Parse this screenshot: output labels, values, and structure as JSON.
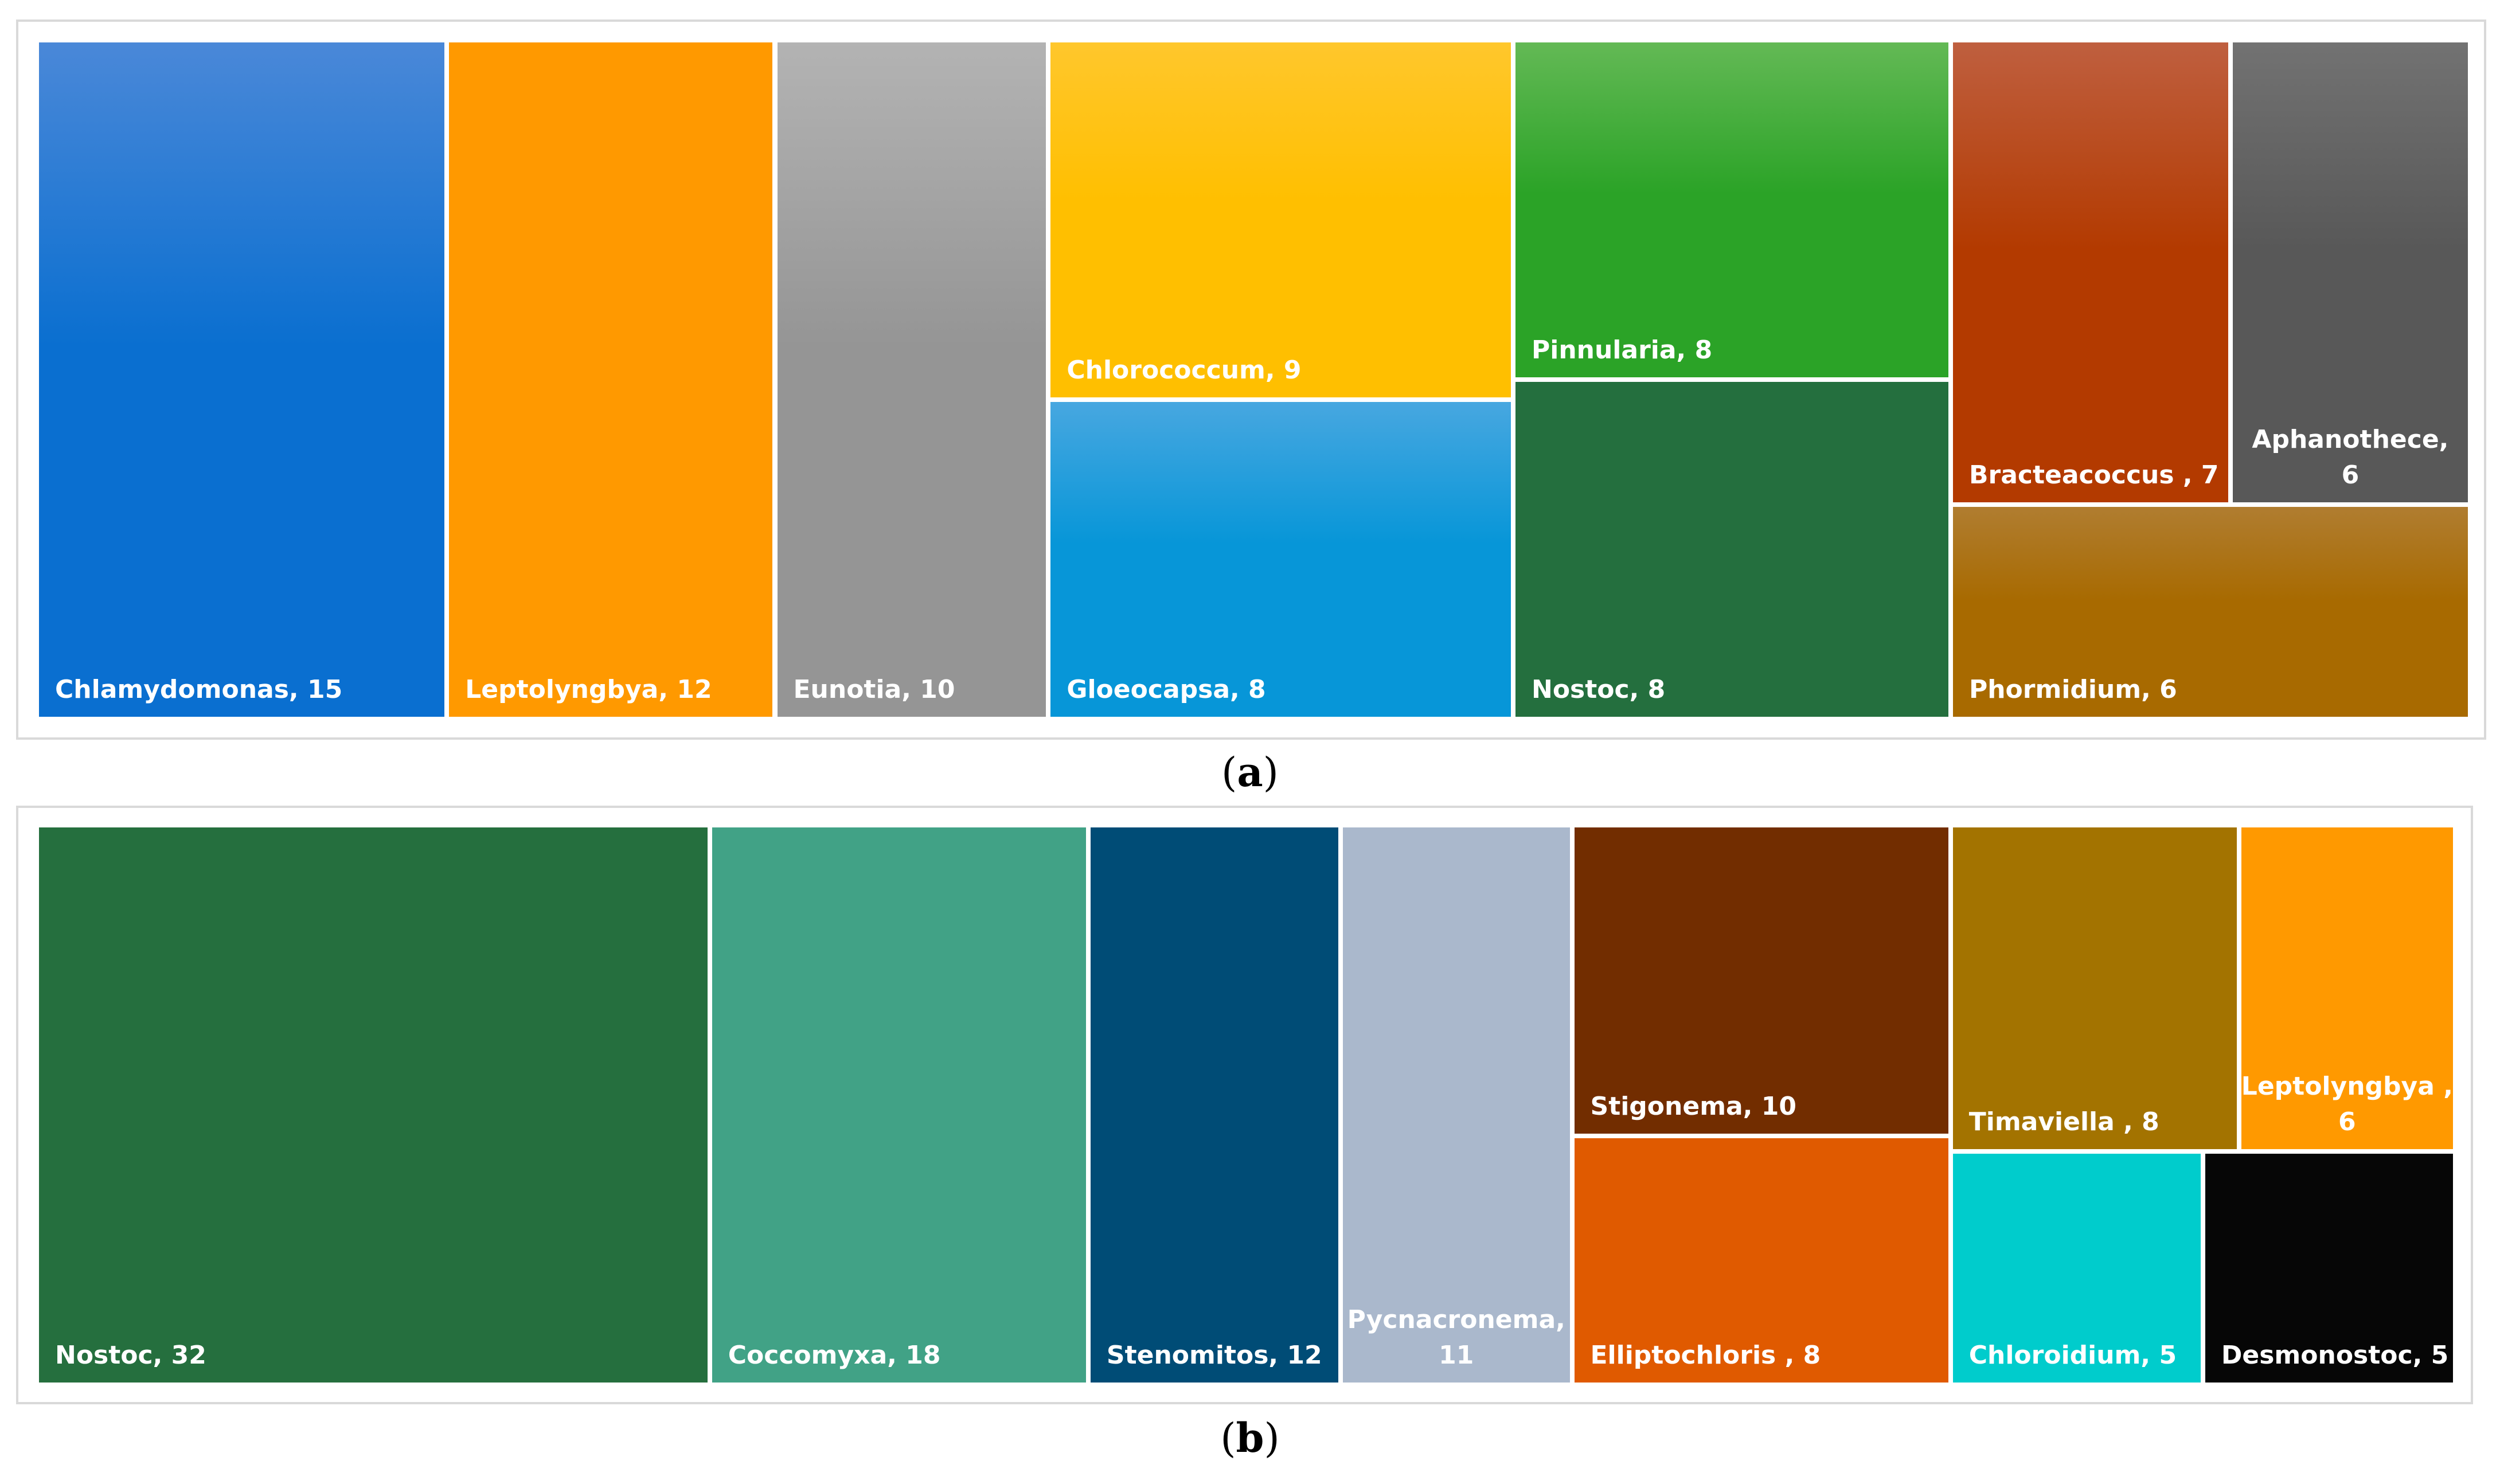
{
  "captions": {
    "a_open": "(",
    "a_letter": "a",
    "a_close": ")",
    "b_open": "(",
    "b_letter": "b",
    "b_close": ")"
  },
  "chart_data": [
    {
      "type": "treemap",
      "panel": "a",
      "items": [
        {
          "label": "Chlamydomonas, 15",
          "name": "Chlamydomonas",
          "value": 15,
          "color": "#0a6fd0",
          "color_top": "#4a88d8"
        },
        {
          "label": "Leptolyngbya, 12",
          "name": "Leptolyngbya",
          "value": 12,
          "color": "#ff9900",
          "color_top": "#ff9900"
        },
        {
          "label": "Eunotia, 10",
          "name": "Eunotia",
          "value": 10,
          "color": "#959595",
          "color_top": "#b3b3b3"
        },
        {
          "label": "Chlorococcum, 9",
          "name": "Chlorococcum",
          "value": 9,
          "color": "#ffbf00",
          "color_top": "#ffc72c"
        },
        {
          "label": "Gloeocapsa, 8",
          "name": "Gloeocapsa",
          "value": 8,
          "color": "#0796d8",
          "color_top": "#47a7e0"
        },
        {
          "label": "Pinnularia, 8",
          "name": "Pinnularia",
          "value": 8,
          "color": "#2ba327",
          "color_top": "#63b955"
        },
        {
          "label": "Nostoc, 8",
          "name": "Nostoc",
          "value": 8,
          "color": "#246f3e",
          "color_top": "#246f3e"
        },
        {
          "label": "Bracteacoccus , 7",
          "name": "Bracteacoccus",
          "value": 7,
          "color": "#b33a00",
          "color_top": "#bf5f3f"
        },
        {
          "label": "Aphanothece,\n6",
          "name": "Aphanothece",
          "value": 6,
          "color": "#585858",
          "color_top": "#727272"
        },
        {
          "label": "Phormidium, 6",
          "name": "Phormidium",
          "value": 6,
          "color": "#a86a00",
          "color_top": "#b07d30"
        }
      ]
    },
    {
      "type": "treemap",
      "panel": "b",
      "items": [
        {
          "label": "Nostoc, 32",
          "name": "Nostoc",
          "value": 32,
          "color": "#256f3e"
        },
        {
          "label": "Coccomyxa, 18",
          "name": "Coccomyxa",
          "value": 18,
          "color": "#41a286"
        },
        {
          "label": "Stenomitos, 12",
          "name": "Stenomitos",
          "value": 12,
          "color": "#004c76"
        },
        {
          "label": "Pycnacronema,\n11",
          "name": "Pycnacronema",
          "value": 11,
          "color": "#aab8cc"
        },
        {
          "label": "Stigonema, 10",
          "name": "Stigonema",
          "value": 10,
          "color": "#722d00"
        },
        {
          "label": "Elliptochloris , 8",
          "name": "Elliptochloris",
          "value": 8,
          "color": "#e05a00"
        },
        {
          "label": "Timaviella , 8",
          "name": "Timaviella",
          "value": 8,
          "color": "#a37300"
        },
        {
          "label": "Leptolyngbya ,\n6",
          "name": "Leptolyngbya",
          "value": 6,
          "color": "#ff9900"
        },
        {
          "label": "Chloroidium, 5",
          "name": "Chloroidium",
          "value": 5,
          "color": "#00cccc"
        },
        {
          "label": "Desmonostoc, 5",
          "name": "Desmonostoc",
          "value": 5,
          "color": "#060606"
        }
      ]
    }
  ]
}
